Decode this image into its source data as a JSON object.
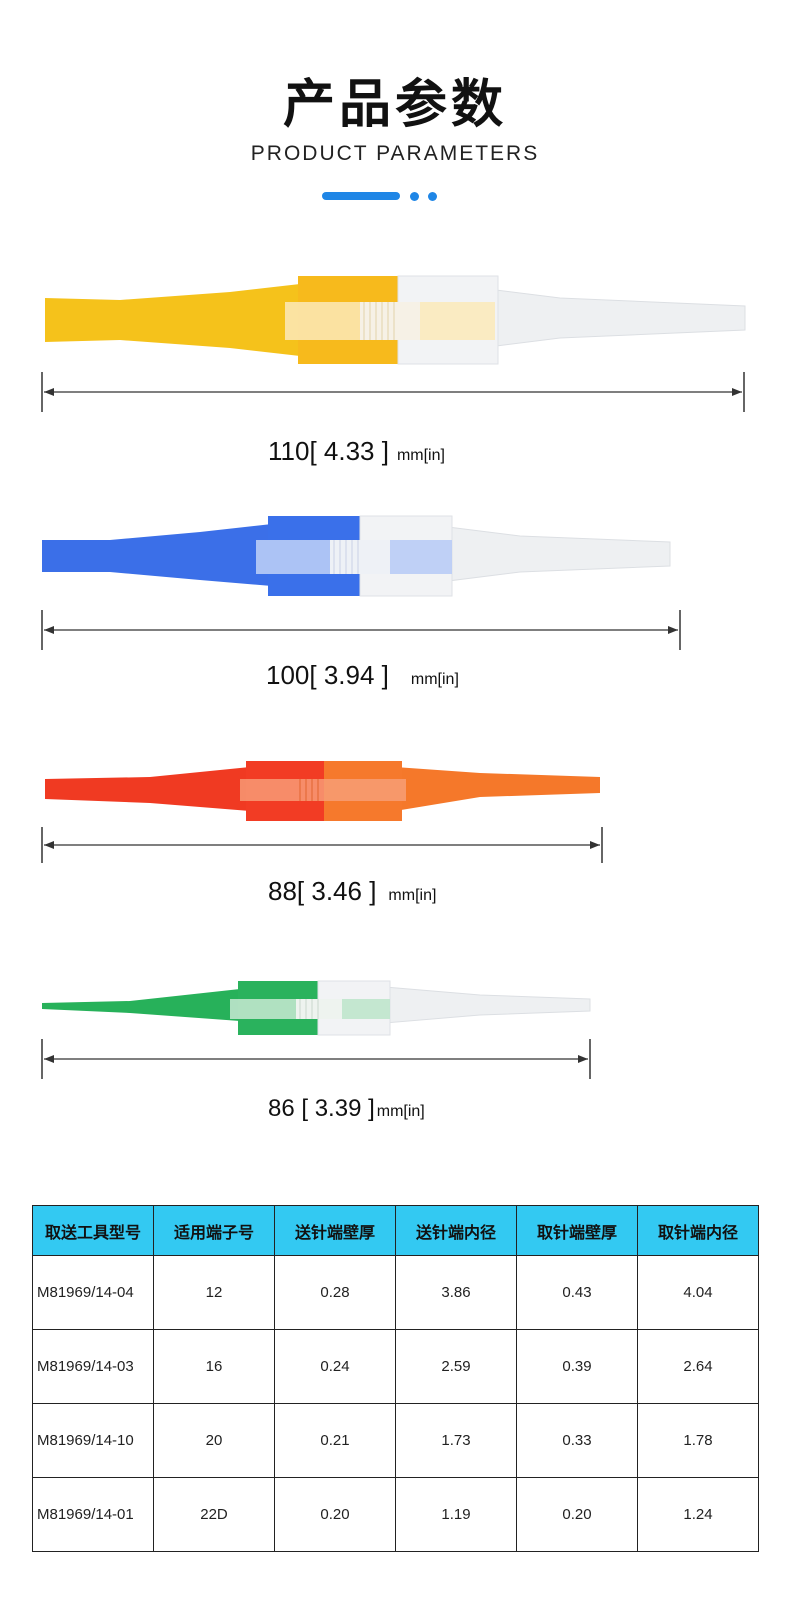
{
  "header": {
    "title": "产品参数",
    "subtitle": "PRODUCT PARAMETERS"
  },
  "colors": {
    "accent": "#1f86e6",
    "table_header": "#33c9f2",
    "tool1": "#f5c21b",
    "tool2": "#3b6fe8",
    "tool3_left": "#f03a22",
    "tool3_right": "#f5782a",
    "tool4": "#27b15a",
    "white_part": "#eef0f2"
  },
  "tools": [
    {
      "length_mm": "110",
      "length_in": "4.33",
      "unit": "mm[in]",
      "color_name": "yellow"
    },
    {
      "length_mm": "100",
      "length_in": "3.94",
      "unit": "mm[in]",
      "color_name": "blue"
    },
    {
      "length_mm": "88",
      "length_in": "3.46",
      "unit": "mm[in]",
      "color_name": "red-orange"
    },
    {
      "length_mm": "86",
      "length_in": "3.39",
      "unit": "mm[in]",
      "color_name": "green"
    }
  ],
  "dim_labels": [
    "110[ 4.33 ]",
    "100[ 3.94 ]",
    "88[ 3.46 ]",
    "86 [ 3.39 ]"
  ],
  "table": {
    "headers": [
      "取送工具型号",
      "适用端子号",
      "送针端壁厚",
      "送针端内径",
      "取针端壁厚",
      "取针端内径"
    ],
    "rows": [
      [
        "M81969/14-04",
        "12",
        "0.28",
        "3.86",
        "0.43",
        "4.04"
      ],
      [
        "M81969/14-03",
        "16",
        "0.24",
        "2.59",
        "0.39",
        "2.64"
      ],
      [
        "M81969/14-10",
        "20",
        "0.21",
        "1.73",
        "0.33",
        "1.78"
      ],
      [
        "M81969/14-01",
        "22D",
        "0.20",
        "1.19",
        "0.20",
        "1.24"
      ]
    ]
  }
}
